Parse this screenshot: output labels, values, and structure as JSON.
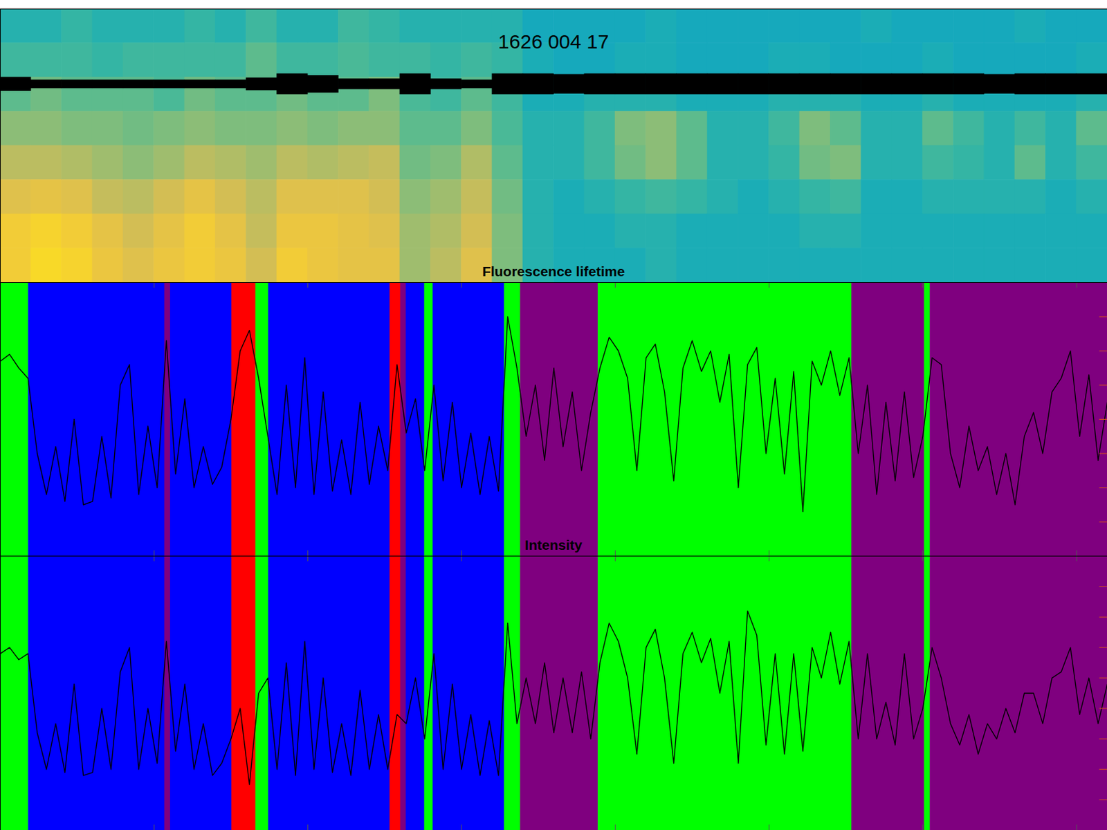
{
  "chart_data": [
    {
      "type": "heatmap",
      "title": "1626 004 17",
      "xlim": [
        0,
        7200
      ],
      "ylim": [
        0,
        8
      ],
      "zlim": [
        0,
        1
      ],
      "tick_labels": false,
      "cells": [
        [
          0.45,
          0.45,
          0.48,
          0.45,
          0.45,
          0.45,
          0.48,
          0.45,
          0.5,
          0.45,
          0.45,
          0.5,
          0.48,
          0.45,
          0.45,
          0.45,
          0.45,
          0.4,
          0.4,
          0.4,
          0.4,
          0.42,
          0.4,
          0.4,
          0.4,
          0.4,
          0.4,
          0.4,
          0.42,
          0.4,
          0.4,
          0.4,
          0.4,
          0.42,
          0.4,
          0.4
        ],
        [
          0.5,
          0.5,
          0.5,
          0.48,
          0.5,
          0.5,
          0.5,
          0.5,
          0.55,
          0.5,
          0.5,
          0.52,
          0.5,
          0.5,
          0.48,
          0.5,
          0.48,
          0.42,
          0.4,
          0.4,
          0.42,
          0.42,
          0.4,
          0.4,
          0.4,
          0.42,
          0.42,
          0.4,
          0.4,
          0.4,
          0.42,
          0.4,
          0.4,
          0.4,
          0.4,
          0.42
        ],
        [
          0.55,
          0.58,
          0.55,
          0.55,
          0.55,
          0.52,
          0.58,
          0.55,
          0.55,
          0.58,
          0.55,
          0.55,
          0.6,
          0.52,
          0.5,
          0.55,
          0.5,
          0.42,
          0.42,
          0.45,
          0.45,
          0.45,
          0.42,
          0.42,
          0.42,
          0.45,
          0.45,
          0.45,
          0.42,
          0.42,
          0.45,
          0.42,
          0.42,
          0.42,
          0.42,
          0.45
        ],
        [
          0.62,
          0.62,
          0.6,
          0.6,
          0.58,
          0.6,
          0.62,
          0.6,
          0.6,
          0.62,
          0.6,
          0.62,
          0.62,
          0.55,
          0.55,
          0.6,
          0.52,
          0.45,
          0.45,
          0.5,
          0.6,
          0.62,
          0.55,
          0.45,
          0.45,
          0.5,
          0.6,
          0.55,
          0.45,
          0.45,
          0.55,
          0.5,
          0.45,
          0.5,
          0.45,
          0.55
        ],
        [
          0.7,
          0.7,
          0.68,
          0.65,
          0.62,
          0.65,
          0.7,
          0.68,
          0.65,
          0.7,
          0.68,
          0.7,
          0.72,
          0.58,
          0.6,
          0.68,
          0.55,
          0.45,
          0.45,
          0.5,
          0.58,
          0.62,
          0.55,
          0.45,
          0.45,
          0.48,
          0.58,
          0.6,
          0.45,
          0.45,
          0.5,
          0.48,
          0.45,
          0.55,
          0.45,
          0.5
        ],
        [
          0.78,
          0.8,
          0.78,
          0.72,
          0.7,
          0.75,
          0.8,
          0.75,
          0.7,
          0.78,
          0.78,
          0.78,
          0.75,
          0.62,
          0.65,
          0.72,
          0.58,
          0.45,
          0.42,
          0.45,
          0.48,
          0.5,
          0.48,
          0.45,
          0.42,
          0.45,
          0.48,
          0.5,
          0.42,
          0.42,
          0.45,
          0.45,
          0.45,
          0.45,
          0.42,
          0.45
        ],
        [
          0.85,
          0.88,
          0.85,
          0.8,
          0.75,
          0.8,
          0.85,
          0.8,
          0.72,
          0.82,
          0.82,
          0.8,
          0.78,
          0.65,
          0.68,
          0.75,
          0.6,
          0.45,
          0.42,
          0.42,
          0.45,
          0.45,
          0.42,
          0.42,
          0.42,
          0.42,
          0.45,
          0.45,
          0.42,
          0.42,
          0.42,
          0.42,
          0.42,
          0.42,
          0.42,
          0.42
        ],
        [
          0.85,
          0.9,
          0.88,
          0.82,
          0.78,
          0.82,
          0.85,
          0.82,
          0.75,
          0.85,
          0.82,
          0.8,
          0.8,
          0.65,
          0.7,
          0.78,
          0.6,
          0.45,
          0.42,
          0.42,
          0.42,
          0.45,
          0.42,
          0.42,
          0.42,
          0.42,
          0.42,
          0.42,
          0.42,
          0.42,
          0.42,
          0.42,
          0.42,
          0.42,
          0.42,
          0.42
        ]
      ],
      "eeg": {
        "center": 5.8,
        "amplitude": [
          0.2,
          0.12,
          0.12,
          0.12,
          0.12,
          0.12,
          0.12,
          0.12,
          0.18,
          0.3,
          0.25,
          0.15,
          0.15,
          0.3,
          0.15,
          0.12,
          0.3,
          0.3,
          0.28,
          0.3,
          0.3,
          0.3,
          0.3,
          0.3,
          0.3,
          0.3,
          0.3,
          0.3,
          0.3,
          0.3,
          0.3,
          0.3,
          0.28,
          0.3,
          0.3,
          0.3
        ]
      }
    },
    {
      "type": "line",
      "title": "Fluorescence lifetime",
      "color": "#000000",
      "xlim": [
        0,
        7200
      ],
      "xticks": [
        1000,
        2000,
        3000,
        4000,
        5000,
        6000,
        7000
      ],
      "ylim": [
        0,
        8
      ],
      "yticks": [
        1,
        2,
        3,
        4,
        5,
        6,
        7
      ],
      "tick_labels": false,
      "bands": [
        {
          "start": 0,
          "end": 184,
          "color": "#00ff00"
        },
        {
          "start": 184,
          "end": 1070,
          "color": "#0000ff"
        },
        {
          "start": 1070,
          "end": 1107,
          "color": "#7f007f"
        },
        {
          "start": 1107,
          "end": 1506,
          "color": "#0000ff"
        },
        {
          "start": 1506,
          "end": 1662,
          "color": "#ff0000"
        },
        {
          "start": 1662,
          "end": 1745,
          "color": "#00ff00"
        },
        {
          "start": 1745,
          "end": 2535,
          "color": "#0000ff"
        },
        {
          "start": 2535,
          "end": 2604,
          "color": "#ff0000"
        },
        {
          "start": 2604,
          "end": 2640,
          "color": "#7f007f"
        },
        {
          "start": 2640,
          "end": 2760,
          "color": "#0000ff"
        },
        {
          "start": 2760,
          "end": 2815,
          "color": "#00ff00"
        },
        {
          "start": 2815,
          "end": 3279,
          "color": "#0000ff"
        },
        {
          "start": 3279,
          "end": 3384,
          "color": "#00ff00"
        },
        {
          "start": 3384,
          "end": 3889,
          "color": "#7f007f"
        },
        {
          "start": 3889,
          "end": 5538,
          "color": "#00ff00"
        },
        {
          "start": 5538,
          "end": 6011,
          "color": "#7f007f"
        },
        {
          "start": 6011,
          "end": 6048,
          "color": "#00ff00"
        },
        {
          "start": 6048,
          "end": 7200,
          "color": "#7f007f"
        }
      ],
      "x": [
        0,
        60,
        120,
        180,
        240,
        300,
        360,
        420,
        480,
        540,
        600,
        660,
        720,
        780,
        840,
        900,
        960,
        1020,
        1080,
        1140,
        1200,
        1260,
        1320,
        1380,
        1440,
        1500,
        1560,
        1620,
        1680,
        1740,
        1800,
        1860,
        1920,
        1980,
        2040,
        2100,
        2160,
        2220,
        2280,
        2340,
        2400,
        2460,
        2520,
        2580,
        2640,
        2700,
        2760,
        2820,
        2880,
        2940,
        3000,
        3060,
        3120,
        3180,
        3240,
        3300,
        3360,
        3420,
        3480,
        3540,
        3600,
        3660,
        3720,
        3780,
        3840,
        3900,
        3960,
        4020,
        4080,
        4140,
        4200,
        4260,
        4320,
        4380,
        4440,
        4500,
        4560,
        4620,
        4680,
        4740,
        4800,
        4860,
        4920,
        4980,
        5040,
        5100,
        5160,
        5220,
        5280,
        5340,
        5400,
        5460,
        5520,
        5580,
        5640,
        5700,
        5760,
        5820,
        5880,
        5940,
        6000,
        6060,
        6120,
        6180,
        6240,
        6300,
        6360,
        6420,
        6480,
        6540,
        6600,
        6660,
        6720,
        6780,
        6840,
        6900,
        6960,
        7020,
        7080,
        7140,
        7200
      ],
      "values": [
        5.7,
        5.9,
        5.5,
        5.2,
        3.0,
        1.8,
        3.2,
        1.6,
        4.0,
        1.5,
        1.6,
        3.5,
        1.7,
        5.0,
        5.6,
        1.8,
        3.8,
        2.0,
        6.3,
        2.4,
        4.6,
        2.0,
        3.2,
        2.1,
        2.6,
        4.0,
        6.0,
        6.6,
        5.2,
        3.5,
        1.8,
        5.0,
        2.0,
        5.8,
        1.8,
        4.8,
        1.9,
        3.4,
        1.8,
        4.5,
        2.1,
        3.8,
        2.5,
        5.6,
        3.6,
        4.6,
        2.5,
        5.0,
        2.2,
        4.5,
        2.0,
        3.6,
        1.8,
        3.5,
        1.9,
        7.0,
        5.5,
        3.5,
        5.0,
        2.8,
        5.5,
        3.2,
        4.8,
        2.5,
        4.2,
        5.5,
        6.4,
        6.0,
        5.2,
        2.5,
        5.8,
        6.2,
        4.8,
        2.2,
        5.5,
        6.3,
        5.4,
        6.0,
        4.5,
        5.9,
        2.0,
        5.6,
        6.1,
        3.0,
        5.2,
        2.4,
        5.4,
        1.3,
        5.7,
        5.0,
        6.0,
        4.7,
        5.8,
        3.0,
        5.0,
        1.8,
        4.5,
        2.2,
        4.8,
        2.3,
        3.5,
        5.8,
        5.6,
        3.0,
        2.0,
        3.8,
        2.5,
        3.2,
        1.8,
        3.0,
        1.5,
        3.5,
        4.2,
        3.0,
        4.8,
        5.2,
        6.0,
        3.5,
        5.3,
        2.8,
        4.5
      ]
    },
    {
      "type": "line",
      "title": "Intensity",
      "color": "#000000",
      "xlim": [
        0,
        7200
      ],
      "xticks": [
        1000,
        2000,
        3000,
        4000,
        5000,
        6000,
        7000
      ],
      "ylim": [
        0,
        9
      ],
      "yticks": [
        1,
        2,
        3,
        4,
        5,
        6,
        7,
        8
      ],
      "tick_labels": false,
      "bands": [
        {
          "start": 0,
          "end": 184,
          "color": "#00ff00"
        },
        {
          "start": 184,
          "end": 1070,
          "color": "#0000ff"
        },
        {
          "start": 1070,
          "end": 1107,
          "color": "#7f007f"
        },
        {
          "start": 1107,
          "end": 1506,
          "color": "#0000ff"
        },
        {
          "start": 1506,
          "end": 1662,
          "color": "#ff0000"
        },
        {
          "start": 1662,
          "end": 1745,
          "color": "#00ff00"
        },
        {
          "start": 1745,
          "end": 2535,
          "color": "#0000ff"
        },
        {
          "start": 2535,
          "end": 2604,
          "color": "#ff0000"
        },
        {
          "start": 2604,
          "end": 2640,
          "color": "#7f007f"
        },
        {
          "start": 2640,
          "end": 2760,
          "color": "#0000ff"
        },
        {
          "start": 2760,
          "end": 2815,
          "color": "#00ff00"
        },
        {
          "start": 2815,
          "end": 3279,
          "color": "#0000ff"
        },
        {
          "start": 3279,
          "end": 3384,
          "color": "#00ff00"
        },
        {
          "start": 3384,
          "end": 3889,
          "color": "#7f007f"
        },
        {
          "start": 3889,
          "end": 5538,
          "color": "#00ff00"
        },
        {
          "start": 5538,
          "end": 6011,
          "color": "#7f007f"
        },
        {
          "start": 6011,
          "end": 6048,
          "color": "#00ff00"
        },
        {
          "start": 6048,
          "end": 7200,
          "color": "#7f007f"
        }
      ],
      "x": [
        0,
        60,
        120,
        180,
        240,
        300,
        360,
        420,
        480,
        540,
        600,
        660,
        720,
        780,
        840,
        900,
        960,
        1020,
        1080,
        1140,
        1200,
        1260,
        1320,
        1380,
        1440,
        1500,
        1560,
        1620,
        1680,
        1740,
        1800,
        1860,
        1920,
        1980,
        2040,
        2100,
        2160,
        2220,
        2280,
        2340,
        2400,
        2460,
        2520,
        2580,
        2640,
        2700,
        2760,
        2820,
        2880,
        2940,
        3000,
        3060,
        3120,
        3180,
        3240,
        3300,
        3360,
        3420,
        3480,
        3540,
        3600,
        3660,
        3720,
        3780,
        3840,
        3900,
        3960,
        4020,
        4080,
        4140,
        4200,
        4260,
        4320,
        4380,
        4440,
        4500,
        4560,
        4620,
        4680,
        4740,
        4800,
        4860,
        4920,
        4980,
        5040,
        5100,
        5160,
        5220,
        5280,
        5340,
        5400,
        5460,
        5520,
        5580,
        5640,
        5700,
        5760,
        5820,
        5880,
        5940,
        6000,
        6060,
        6120,
        6180,
        6240,
        6300,
        6360,
        6420,
        6480,
        6540,
        6600,
        6660,
        6720,
        6780,
        6840,
        6900,
        6960,
        7020,
        7080,
        7140,
        7200
      ],
      "values": [
        5.8,
        6.0,
        5.6,
        5.8,
        3.2,
        2.0,
        3.5,
        1.9,
        4.8,
        1.8,
        1.9,
        4.0,
        2.0,
        5.2,
        6.0,
        2.0,
        4.0,
        2.2,
        6.2,
        2.6,
        4.8,
        2.0,
        3.5,
        1.8,
        2.2,
        3.0,
        4.0,
        1.5,
        4.5,
        5.0,
        2.0,
        5.5,
        1.8,
        6.2,
        2.0,
        5.0,
        1.9,
        3.5,
        1.8,
        4.6,
        2.0,
        3.8,
        2.0,
        3.8,
        3.5,
        5.0,
        3.0,
        5.8,
        2.0,
        4.8,
        2.0,
        3.8,
        1.8,
        3.6,
        1.8,
        6.8,
        3.5,
        5.0,
        3.5,
        5.5,
        3.2,
        5.0,
        3.2,
        5.2,
        3.0,
        5.5,
        6.8,
        6.2,
        5.0,
        2.5,
        6.0,
        6.6,
        5.0,
        2.2,
        5.8,
        6.5,
        5.5,
        6.3,
        4.5,
        6.2,
        2.2,
        7.2,
        6.4,
        2.8,
        5.8,
        2.5,
        5.8,
        2.6,
        6.0,
        5.0,
        6.5,
        4.8,
        6.2,
        3.0,
        5.8,
        3.0,
        4.2,
        2.8,
        5.8,
        3.0,
        4.0,
        6.0,
        5.0,
        3.5,
        2.8,
        3.8,
        2.5,
        3.5,
        3.0,
        4.0,
        3.2,
        4.5,
        4.5,
        3.5,
        5.0,
        5.2,
        6.0,
        3.8,
        5.0,
        3.5,
        4.8
      ]
    }
  ]
}
